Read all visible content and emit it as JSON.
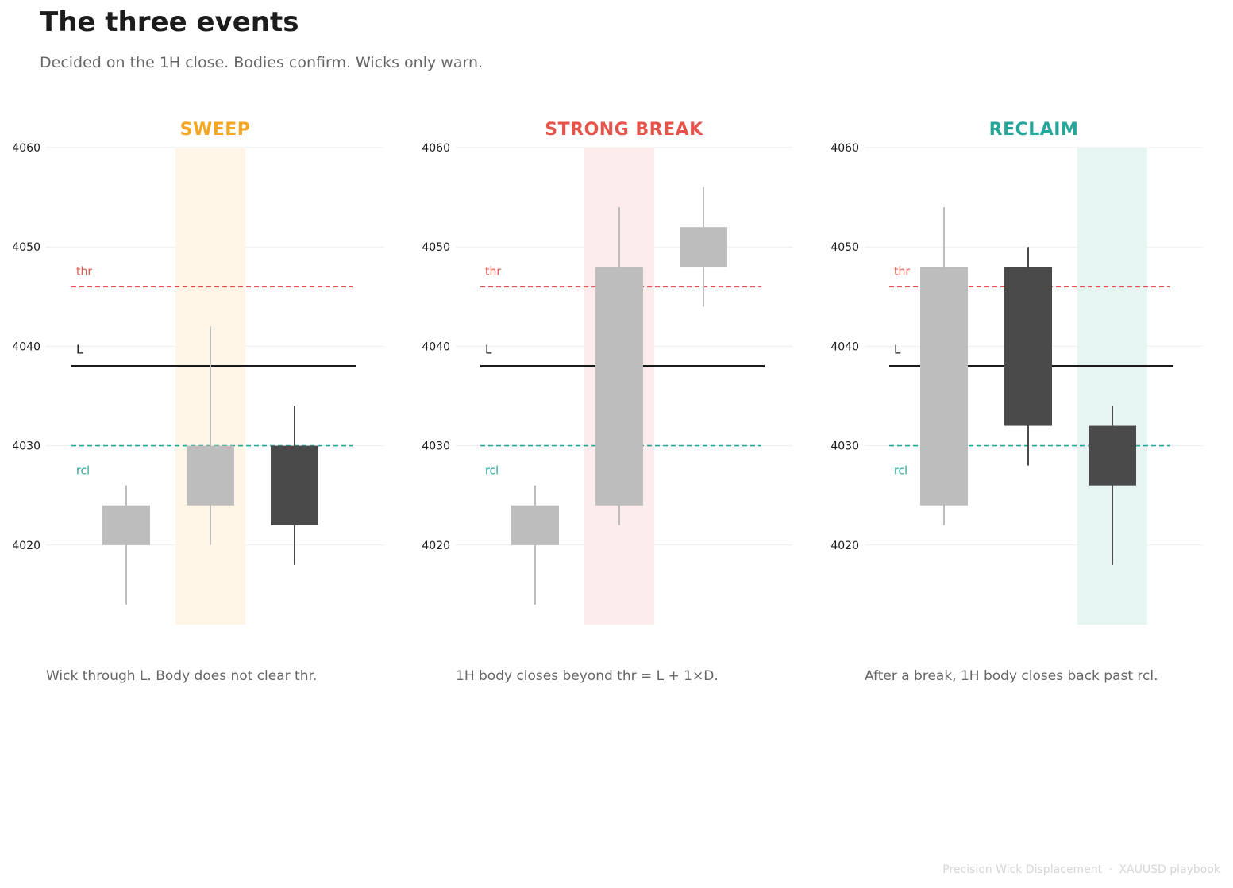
{
  "page": {
    "title": "The three events",
    "subtitle": "Decided on the 1H close. Bodies confirm. Wicks only warn.",
    "footer": {
      "source": "Precision Wick Displacement",
      "separator": "·",
      "tag": "XAUUSD playbook"
    }
  },
  "colors": {
    "bull_candle": "#bdbdbd",
    "bear_candle": "#4a4a4a",
    "level_L": "#1a1a1a",
    "thr": "#e5534b",
    "rcl": "#26a69a",
    "sweep": "#f5a623",
    "strong_break": "#e5534b",
    "reclaim": "#26a69a",
    "grid": "#eeeeee"
  },
  "chart_data": [
    {
      "type": "candlestick",
      "title": "SWEEP",
      "title_color": "#f5a623",
      "caption": "Wick through L. Body does not clear thr.",
      "ylim": [
        4012,
        4060
      ],
      "yticks": [
        4020,
        4030,
        4040,
        4050,
        4060
      ],
      "grid": true,
      "levels": [
        {
          "name": "thr",
          "label": "thr",
          "value": 4046,
          "style": "dashed",
          "color": "#e5534b"
        },
        {
          "name": "L",
          "label": "L",
          "value": 4038,
          "style": "solid",
          "color": "#1a1a1a"
        },
        {
          "name": "rcl",
          "label": "rcl",
          "value": 4030,
          "style": "dashed",
          "color": "#26a69a"
        }
      ],
      "highlight_index": 1,
      "highlight_color": "#fff6e8",
      "candles": [
        {
          "open": 4020,
          "high": 4026,
          "low": 4014,
          "close": 4024
        },
        {
          "open": 4024,
          "high": 4042,
          "low": 4020,
          "close": 4030
        },
        {
          "open": 4030,
          "high": 4034,
          "low": 4018,
          "close": 4022
        }
      ]
    },
    {
      "type": "candlestick",
      "title": "STRONG BREAK",
      "title_color": "#e5534b",
      "caption": "1H body closes beyond thr = L + 1×D.",
      "ylim": [
        4012,
        4060
      ],
      "yticks": [
        4020,
        4030,
        4040,
        4050,
        4060
      ],
      "grid": true,
      "levels": [
        {
          "name": "thr",
          "label": "thr",
          "value": 4046,
          "style": "dashed",
          "color": "#e5534b"
        },
        {
          "name": "L",
          "label": "L",
          "value": 4038,
          "style": "solid",
          "color": "#1a1a1a"
        },
        {
          "name": "rcl",
          "label": "rcl",
          "value": 4030,
          "style": "dashed",
          "color": "#26a69a"
        }
      ],
      "highlight_index": 1,
      "highlight_color": "#fdecec",
      "candles": [
        {
          "open": 4020,
          "high": 4026,
          "low": 4014,
          "close": 4024
        },
        {
          "open": 4024,
          "high": 4054,
          "low": 4022,
          "close": 4048
        },
        {
          "open": 4048,
          "high": 4056,
          "low": 4044,
          "close": 4052
        }
      ]
    },
    {
      "type": "candlestick",
      "title": "RECLAIM",
      "title_color": "#26a69a",
      "caption": "After a break, 1H body closes back past rcl.",
      "ylim": [
        4012,
        4060
      ],
      "yticks": [
        4020,
        4030,
        4040,
        4050,
        4060
      ],
      "grid": true,
      "levels": [
        {
          "name": "thr",
          "label": "thr",
          "value": 4046,
          "style": "dashed",
          "color": "#e5534b"
        },
        {
          "name": "L",
          "label": "L",
          "value": 4038,
          "style": "solid",
          "color": "#1a1a1a"
        },
        {
          "name": "rcl",
          "label": "rcl",
          "value": 4030,
          "style": "dashed",
          "color": "#26a69a"
        }
      ],
      "highlight_index": 2,
      "highlight_color": "#e6f4f2",
      "candles": [
        {
          "open": 4024,
          "high": 4054,
          "low": 4022,
          "close": 4048
        },
        {
          "open": 4048,
          "high": 4050,
          "low": 4028,
          "close": 4032
        },
        {
          "open": 4032,
          "high": 4034,
          "low": 4018,
          "close": 4026
        }
      ]
    }
  ]
}
